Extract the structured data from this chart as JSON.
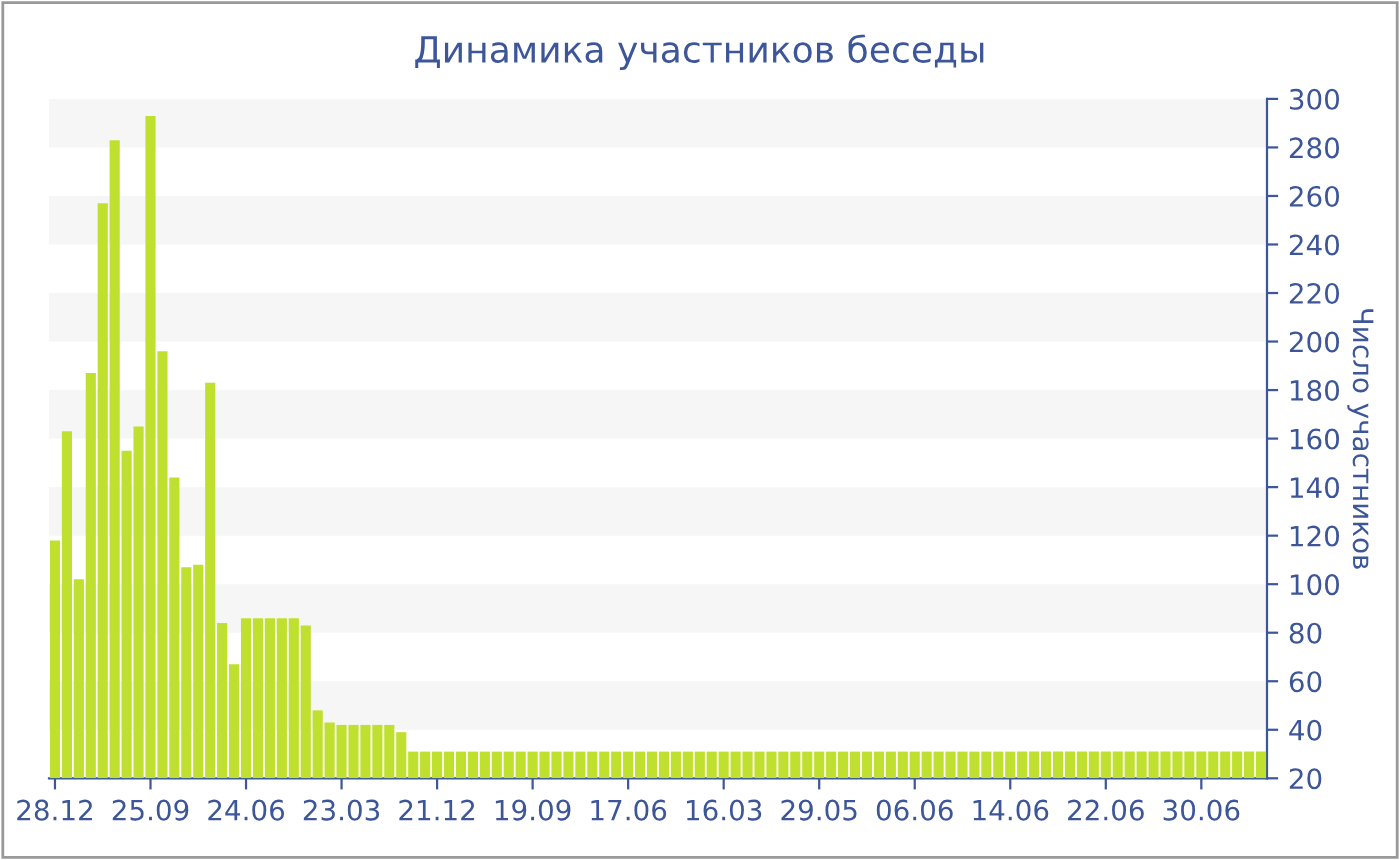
{
  "chart_data": {
    "type": "bar",
    "title": "Динамика участников беседы",
    "ylabel": "Число участников",
    "categories": [
      "28.12",
      null,
      null,
      null,
      null,
      null,
      null,
      null,
      "25.09",
      null,
      null,
      null,
      null,
      null,
      null,
      null,
      "24.06",
      null,
      null,
      null,
      null,
      null,
      null,
      null,
      "23.03",
      null,
      null,
      null,
      null,
      null,
      null,
      null,
      "21.12",
      null,
      null,
      null,
      null,
      null,
      null,
      null,
      "19.09",
      null,
      null,
      null,
      null,
      null,
      null,
      null,
      "17.06",
      null,
      null,
      null,
      null,
      null,
      null,
      null,
      "16.03",
      null,
      null,
      null,
      null,
      null,
      null,
      null,
      "29.05",
      null,
      null,
      null,
      null,
      null,
      null,
      null,
      "06.06",
      null,
      null,
      null,
      null,
      null,
      null,
      null,
      "14.06",
      null,
      null,
      null,
      null,
      null,
      null,
      null,
      "22.06",
      null,
      null,
      null,
      null,
      null,
      null,
      null,
      "30.06",
      null,
      null,
      null,
      null,
      null
    ],
    "values": [
      118,
      163,
      102,
      187,
      257,
      283,
      155,
      165,
      293,
      196,
      144,
      107,
      108,
      183,
      84,
      67,
      86,
      86,
      86,
      86,
      86,
      83,
      48,
      43,
      42,
      42,
      42,
      42,
      42,
      39,
      31,
      31,
      31,
      31,
      31,
      31,
      31,
      31,
      31,
      31,
      31,
      31,
      31,
      31,
      31,
      31,
      31,
      31,
      31,
      31,
      31,
      31,
      31,
      31,
      31,
      31,
      31,
      31,
      31,
      31,
      31,
      31,
      31,
      31,
      31,
      31,
      31,
      31,
      31,
      31,
      31,
      31,
      31,
      31,
      31,
      31,
      31,
      31,
      31,
      31,
      31,
      31,
      31,
      31,
      31,
      31,
      31,
      31,
      31,
      31,
      31,
      31,
      31,
      31,
      31,
      31,
      31,
      31,
      31,
      31,
      31,
      31
    ],
    "color": "#bfe02e",
    "ylim": [
      20,
      300
    ],
    "yticks": [
      20,
      40,
      60,
      80,
      100,
      120,
      140,
      160,
      180,
      200,
      220,
      240,
      260,
      280,
      300
    ],
    "bands": [
      {
        "axis": "y",
        "from": 40,
        "to": 60,
        "color": "#f6f6f6"
      },
      {
        "axis": "y",
        "from": 80,
        "to": 100,
        "color": "#f6f6f6"
      },
      {
        "axis": "y",
        "from": 120,
        "to": 140,
        "color": "#f6f6f6"
      },
      {
        "axis": "y",
        "from": 160,
        "to": 180,
        "color": "#f6f6f6"
      },
      {
        "axis": "y",
        "from": 200,
        "to": 220,
        "color": "#f6f6f6"
      },
      {
        "axis": "y",
        "from": 240,
        "to": 260,
        "color": "#f6f6f6"
      },
      {
        "axis": "y",
        "from": 280,
        "to": 300,
        "color": "#f6f6f6"
      }
    ]
  }
}
